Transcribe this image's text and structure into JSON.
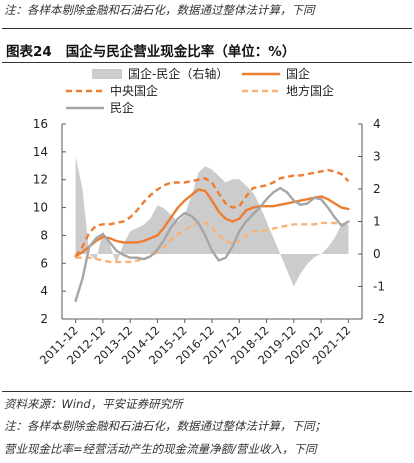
{
  "top_note": "注：各样本剔除金融和石油石化，数据通过整体法计算，下同",
  "figure": {
    "label": "图表24",
    "title": "国企与民企营业现金比率（单位：%）"
  },
  "notes": {
    "source": "资料来源：Wind，平安证券研究所",
    "calc": "注：各样本剔除金融和石油石化，数据通过整体法计算，下同；",
    "definition": "营业现金比率=经营活动产生的现金流量净额/营业收入，下同"
  },
  "chart_data": {
    "type": "line",
    "title": "国企与民企营业现金比率（单位：%）",
    "x_tick_labels": [
      "2011-12",
      "2012-12",
      "2013-12",
      "2014-12",
      "2015-12",
      "2016-12",
      "2017-12",
      "2018-12",
      "2019-12",
      "2020-12",
      "2021-12"
    ],
    "y_left": {
      "min": 2,
      "max": 16,
      "ticks": [
        2,
        4,
        6,
        8,
        10,
        12,
        14,
        16
      ]
    },
    "y_right": {
      "min": -2,
      "max": 4,
      "ticks": [
        -2,
        -1,
        0,
        1,
        2,
        3,
        4
      ]
    },
    "grid": false,
    "legend_position": "top",
    "series": [
      {
        "name": "国企-民企（右轴）",
        "type": "area",
        "axis": "right",
        "color": "#cccccc",
        "x": [
          0,
          0.25,
          0.5,
          0.75,
          1,
          1.25,
          1.5,
          1.75,
          2,
          2.25,
          2.5,
          2.75,
          3,
          3.25,
          3.5,
          3.75,
          4,
          4.25,
          4.5,
          4.75,
          5,
          5.25,
          5.5,
          5.75,
          6,
          6.25,
          6.5,
          6.75,
          7,
          7.25,
          7.5,
          7.75,
          8,
          8.25,
          8.5,
          8.75,
          9,
          9.25,
          9.5,
          9.75,
          10
        ],
        "values": [
          3.0,
          2.0,
          0.0,
          -0.2,
          0.7,
          0.3,
          -0.3,
          0.3,
          0.7,
          0.8,
          0.9,
          1.1,
          1.5,
          1.4,
          1.2,
          1.0,
          1.2,
          1.8,
          2.5,
          2.7,
          2.6,
          2.4,
          2.2,
          2.3,
          2.3,
          2.1,
          1.9,
          1.5,
          1.0,
          0.5,
          0.0,
          -0.5,
          -1.0,
          -0.6,
          -0.3,
          -0.1,
          0.0,
          0.2,
          0.5,
          0.9,
          0.9
        ]
      },
      {
        "name": "国企",
        "type": "line",
        "axis": "left",
        "color": "#ed7d31",
        "dash": "solid",
        "x": [
          0,
          0.25,
          0.5,
          0.75,
          1,
          1.25,
          1.5,
          1.75,
          2,
          2.25,
          2.5,
          2.75,
          3,
          3.25,
          3.5,
          3.75,
          4,
          4.25,
          4.5,
          4.75,
          5,
          5.25,
          5.5,
          5.75,
          6,
          6.25,
          6.5,
          6.75,
          7,
          7.25,
          7.5,
          7.75,
          8,
          8.25,
          8.5,
          8.75,
          9,
          9.25,
          9.5,
          9.75,
          10
        ],
        "values": [
          6.5,
          6.8,
          7.2,
          7.6,
          7.9,
          7.8,
          7.6,
          7.5,
          7.5,
          7.5,
          7.6,
          7.8,
          8.0,
          8.6,
          9.3,
          10.0,
          10.5,
          10.9,
          11.3,
          11.2,
          10.5,
          9.7,
          9.2,
          9.0,
          9.2,
          9.8,
          10.0,
          10.1,
          10.1,
          10.1,
          10.2,
          10.3,
          10.4,
          10.5,
          10.6,
          10.7,
          10.8,
          10.6,
          10.3,
          10.0,
          9.9
        ]
      },
      {
        "name": "中央国企",
        "type": "line",
        "axis": "left",
        "color": "#ed7d31",
        "dash": "dashed",
        "x": [
          0,
          0.25,
          0.5,
          0.75,
          1,
          1.25,
          1.5,
          1.75,
          2,
          2.25,
          2.5,
          2.75,
          3,
          3.25,
          3.5,
          3.75,
          4,
          4.25,
          4.5,
          4.75,
          5,
          5.25,
          5.5,
          5.75,
          6,
          6.25,
          6.5,
          6.75,
          7,
          7.25,
          7.5,
          7.75,
          8,
          8.25,
          8.5,
          8.75,
          9,
          9.25,
          9.5,
          9.75,
          10
        ],
        "values": [
          6.5,
          7.2,
          8.2,
          8.7,
          8.8,
          8.8,
          8.9,
          9.0,
          9.3,
          9.8,
          10.4,
          10.9,
          11.3,
          11.6,
          11.8,
          11.8,
          11.8,
          11.9,
          12.0,
          12.1,
          11.8,
          11.0,
          10.3,
          10.0,
          10.1,
          10.8,
          11.4,
          11.5,
          11.6,
          11.8,
          12.1,
          12.2,
          12.3,
          12.3,
          12.4,
          12.5,
          12.6,
          12.7,
          12.6,
          12.4,
          11.9
        ]
      },
      {
        "name": "地方国企",
        "type": "line",
        "axis": "left",
        "color": "#f7b278",
        "dash": "dashed",
        "x": [
          0,
          0.25,
          0.5,
          0.75,
          1,
          1.25,
          1.5,
          1.75,
          2,
          2.25,
          2.5,
          2.75,
          3,
          3.25,
          3.5,
          3.75,
          4,
          4.25,
          4.5,
          4.75,
          5,
          5.25,
          5.5,
          5.75,
          6,
          6.25,
          6.5,
          6.75,
          7,
          7.25,
          7.5,
          7.75,
          8,
          8.25,
          8.5,
          8.75,
          9,
          9.25,
          9.5,
          9.75,
          10
        ],
        "values": [
          6.4,
          6.4,
          6.4,
          6.3,
          6.2,
          6.1,
          6.1,
          6.1,
          6.1,
          6.2,
          6.3,
          6.5,
          6.8,
          7.2,
          7.7,
          8.1,
          8.4,
          8.7,
          8.9,
          8.9,
          8.6,
          8.0,
          7.6,
          7.4,
          7.6,
          8.0,
          8.3,
          8.3,
          8.4,
          8.5,
          8.6,
          8.7,
          8.8,
          8.8,
          8.8,
          8.8,
          8.9,
          8.9,
          8.9,
          8.8,
          8.8
        ]
      },
      {
        "name": "民企",
        "type": "line",
        "axis": "left",
        "color": "#a6a6a6",
        "dash": "solid",
        "x": [
          0,
          0.25,
          0.5,
          0.75,
          1,
          1.25,
          1.5,
          1.75,
          2,
          2.25,
          2.5,
          2.75,
          3,
          3.25,
          3.5,
          3.75,
          4,
          4.25,
          4.5,
          4.75,
          5,
          5.25,
          5.5,
          5.75,
          6,
          6.25,
          6.5,
          6.75,
          7,
          7.25,
          7.5,
          7.75,
          8,
          8.25,
          8.5,
          8.75,
          9,
          9.25,
          9.5,
          9.75,
          10
        ],
        "values": [
          3.3,
          4.9,
          7.2,
          7.8,
          8.1,
          7.5,
          6.9,
          6.6,
          6.4,
          6.4,
          6.3,
          6.5,
          7.0,
          7.7,
          8.6,
          9.2,
          9.6,
          9.4,
          8.9,
          8.0,
          6.9,
          6.2,
          6.4,
          7.2,
          8.3,
          9.0,
          9.5,
          10.0,
          10.6,
          11.1,
          11.4,
          11.1,
          10.5,
          10.2,
          10.3,
          10.7,
          10.6,
          10.0,
          9.3,
          8.7,
          9.0
        ]
      }
    ]
  }
}
